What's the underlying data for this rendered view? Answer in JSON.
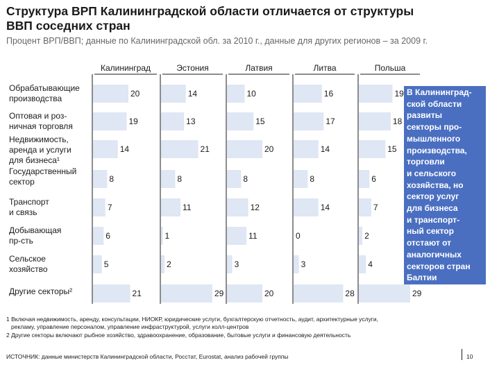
{
  "header": {
    "title_line1": "Структура ВРП Калининградской области отличается от структуры",
    "title_line2": "ВВП соседних стран",
    "subtitle": "Процент ВРП/ВВП; данные по Калининградской обл. за 2010 г., данные для других регионов – за 2009 г."
  },
  "chart_data": {
    "type": "bar",
    "layout": "small-multiples-horizontal",
    "series": [
      {
        "name": "Калининград",
        "values": [
          20,
          19,
          14,
          8,
          7,
          6,
          5,
          21
        ]
      },
      {
        "name": "Эстония",
        "values": [
          14,
          13,
          21,
          8,
          11,
          1,
          2,
          29
        ]
      },
      {
        "name": "Латвия",
        "values": [
          10,
          15,
          20,
          8,
          12,
          11,
          3,
          20
        ]
      },
      {
        "name": "Литва",
        "values": [
          16,
          17,
          14,
          8,
          14,
          0,
          3,
          28
        ]
      },
      {
        "name": "Польша",
        "values": [
          19,
          18,
          15,
          6,
          7,
          2,
          4,
          29
        ]
      }
    ],
    "categories": [
      "Обрабатывающие производства",
      "Оптовая и розничная торговля",
      "Недвижимость, аренда и услуги для бизнеса¹",
      "Государственный сектор",
      "Транспорт и связь",
      "Добывающая пр-сть",
      "Сельское хозяйство",
      "Другие секторы²"
    ]
  },
  "category_lines": [
    [
      "Обрабатывающие",
      "производства"
    ],
    [
      "Оптовая и роз-",
      "ничная торговля"
    ],
    [
      "Недвижимость,",
      "аренда и услуги",
      "для бизнеса¹"
    ],
    [
      "Государственный",
      "сектор"
    ],
    [
      "Транспорт",
      "и связь"
    ],
    [
      "Добывающая",
      "пр-сть"
    ],
    [
      "Сельское",
      "хозяйство"
    ],
    [
      "Другие секторы²"
    ]
  ],
  "callout": {
    "lines": [
      "В Калининград-",
      "ской области",
      "развиты",
      "секторы про-",
      "мышленного",
      "производства,",
      "торговли",
      "и сельского",
      "хозяйства, но",
      "сектор услуг",
      "для бизнеса",
      "и транспорт-",
      "ный сектор",
      "отстают от",
      "аналогичных",
      "секторов стран",
      "Балтии"
    ]
  },
  "footnotes": {
    "note1_line1": "1 Включая недвижимость, аренду, консультации, НИОКР, юридические услуги, бухгалтерскую отчетность, аудит, архитектурные услуги,",
    "note1_line2": "рекламу, управление персоналом, управление инфраструктурой, услуги колл-центров",
    "note2": "2 Другие секторы включают рыбное хозяйство, здравоохранение, образование, бытовые услуги и финансовую деятельность"
  },
  "source": "ИСТОЧНИК: данные министерств Калининградской области, Росстат, Eurostat, анализ рабочей группы",
  "page_number": "10",
  "colors": {
    "bar": "#dfe6f4",
    "callout": "#4a6fc1",
    "axis": "#1a1a1a"
  }
}
